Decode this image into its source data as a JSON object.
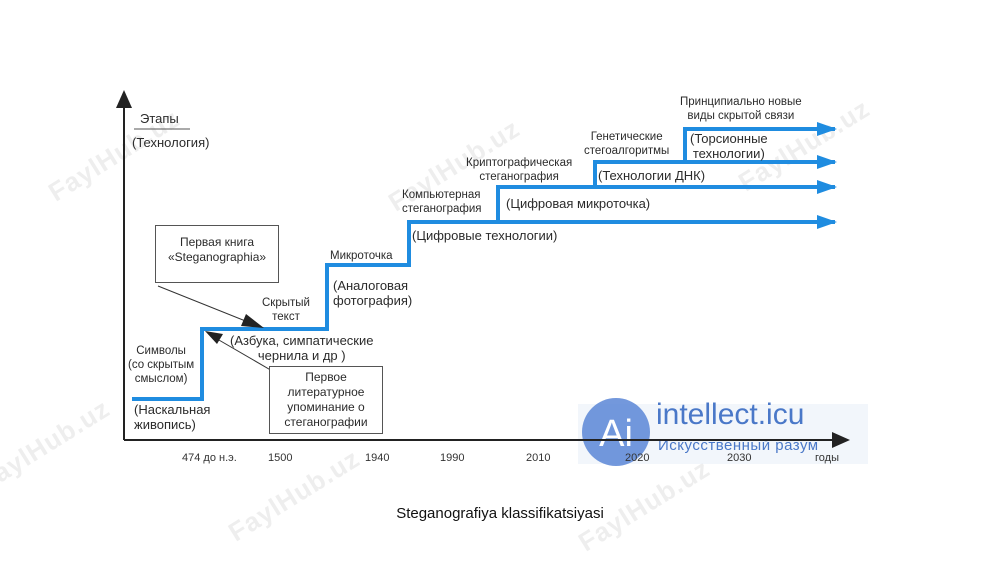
{
  "axis": {
    "y_label": "Этапы",
    "y_sublabel": "(Технология)",
    "x_unit": "годы",
    "ticks": [
      "474 до н.э.",
      "1500",
      "1940",
      "1990",
      "2010",
      "2020",
      "2030"
    ]
  },
  "stages": {
    "s1_title": "Символы\n(со скрытым\nсмыслом)",
    "s1_tech": "(Наскальная\nживопись)",
    "s2_title": "Скрытый\nтекст",
    "s2_tech": "(Азбука, симпатические\nчернила и др )",
    "s3_title": "Микроточка",
    "s3_tech": "(Аналоговая\nфотография)",
    "s4_title": "Компьютерная\nстеганография",
    "s4_tech": "(Цифровые технологии)",
    "s5_title": "Криптографическая\nстеганография",
    "s5_tech": "(Цифровая микроточка)",
    "s6_title": "Генетические\nстегоалгоритмы",
    "s6_tech": "(Технологии ДНК)",
    "s7_title": "Принципиально новые\nвиды скрытой связи",
    "s7_tech": "(Торсионные\nтехнологии)"
  },
  "callouts": {
    "book": "Первая книга\n«Steganographia»",
    "mention": "Первое\nлитературное\nупоминание о\nстеганографии"
  },
  "watermarks": {
    "site": "FaylHub.uz",
    "logo_name": "intellect.icu",
    "logo_tagline": "Искусственный разум",
    "logo_mark": "Ai"
  },
  "caption": "Steganografiya klassifikatsiyasi",
  "colors": {
    "line": "#1f8ce0",
    "axis": "#222222",
    "logo": "#4a78c8"
  }
}
